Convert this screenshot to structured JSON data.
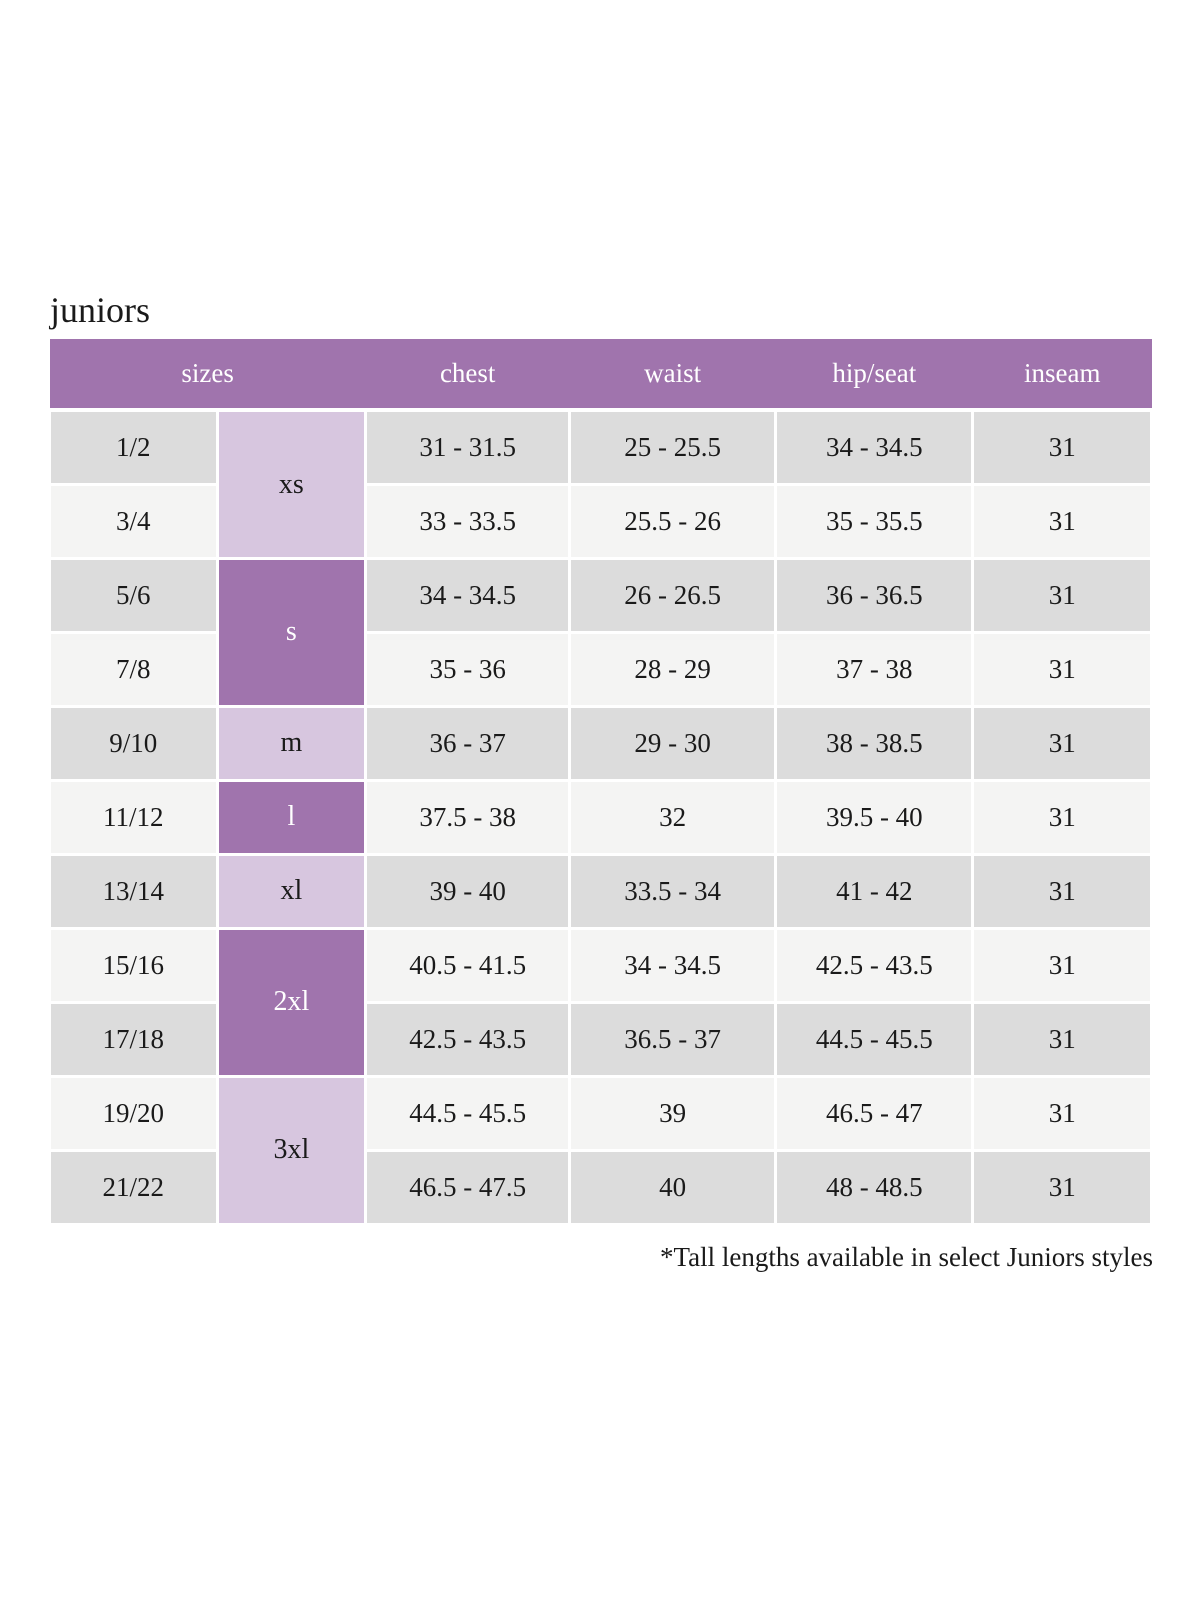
{
  "page": {
    "title": "juniors",
    "footnote": "*Tall lengths available in select Juniors styles"
  },
  "colors": {
    "header_purple": "#a074ad",
    "lavender": "#d7c6df",
    "row_gray": "#dcdcdc",
    "row_light": "#f4f4f3",
    "text_dark": "#1a1a1a",
    "text_white": "#ffffff"
  },
  "table": {
    "headers": {
      "sizes": "sizes",
      "chest": "chest",
      "waist": "waist",
      "hip_seat": "hip/seat",
      "inseam": "inseam"
    },
    "size_groups": [
      {
        "label": "xs",
        "rows": 2,
        "variant": "light"
      },
      {
        "label": "s",
        "rows": 2,
        "variant": "dark"
      },
      {
        "label": "m",
        "rows": 1,
        "variant": "light"
      },
      {
        "label": "l",
        "rows": 1,
        "variant": "dark"
      },
      {
        "label": "xl",
        "rows": 1,
        "variant": "light"
      },
      {
        "label": "2xl",
        "rows": 2,
        "variant": "dark"
      },
      {
        "label": "3xl",
        "rows": 2,
        "variant": "light"
      }
    ],
    "rows": [
      {
        "size": "1/2",
        "chest": "31 - 31.5",
        "waist": "25 - 25.5",
        "hip_seat": "34 - 34.5",
        "inseam": "31"
      },
      {
        "size": "3/4",
        "chest": "33 - 33.5",
        "waist": "25.5 - 26",
        "hip_seat": "35 - 35.5",
        "inseam": "31"
      },
      {
        "size": "5/6",
        "chest": "34 - 34.5",
        "waist": "26 - 26.5",
        "hip_seat": "36 - 36.5",
        "inseam": "31"
      },
      {
        "size": "7/8",
        "chest": "35 - 36",
        "waist": "28 - 29",
        "hip_seat": "37 - 38",
        "inseam": "31"
      },
      {
        "size": "9/10",
        "chest": "36 - 37",
        "waist": "29 - 30",
        "hip_seat": "38 - 38.5",
        "inseam": "31"
      },
      {
        "size": "11/12",
        "chest": "37.5 - 38",
        "waist": "32",
        "hip_seat": "39.5 - 40",
        "inseam": "31"
      },
      {
        "size": "13/14",
        "chest": "39 - 40",
        "waist": "33.5 - 34",
        "hip_seat": "41 - 42",
        "inseam": "31"
      },
      {
        "size": "15/16",
        "chest": "40.5 - 41.5",
        "waist": "34 - 34.5",
        "hip_seat": "42.5 - 43.5",
        "inseam": "31"
      },
      {
        "size": "17/18",
        "chest": "42.5 - 43.5",
        "waist": "36.5 - 37",
        "hip_seat": "44.5 - 45.5",
        "inseam": "31"
      },
      {
        "size": "19/20",
        "chest": "44.5 - 45.5",
        "waist": "39",
        "hip_seat": "46.5 - 47",
        "inseam": "31"
      },
      {
        "size": "21/22",
        "chest": "46.5 - 47.5",
        "waist": "40",
        "hip_seat": "48 - 48.5",
        "inseam": "31"
      }
    ]
  }
}
